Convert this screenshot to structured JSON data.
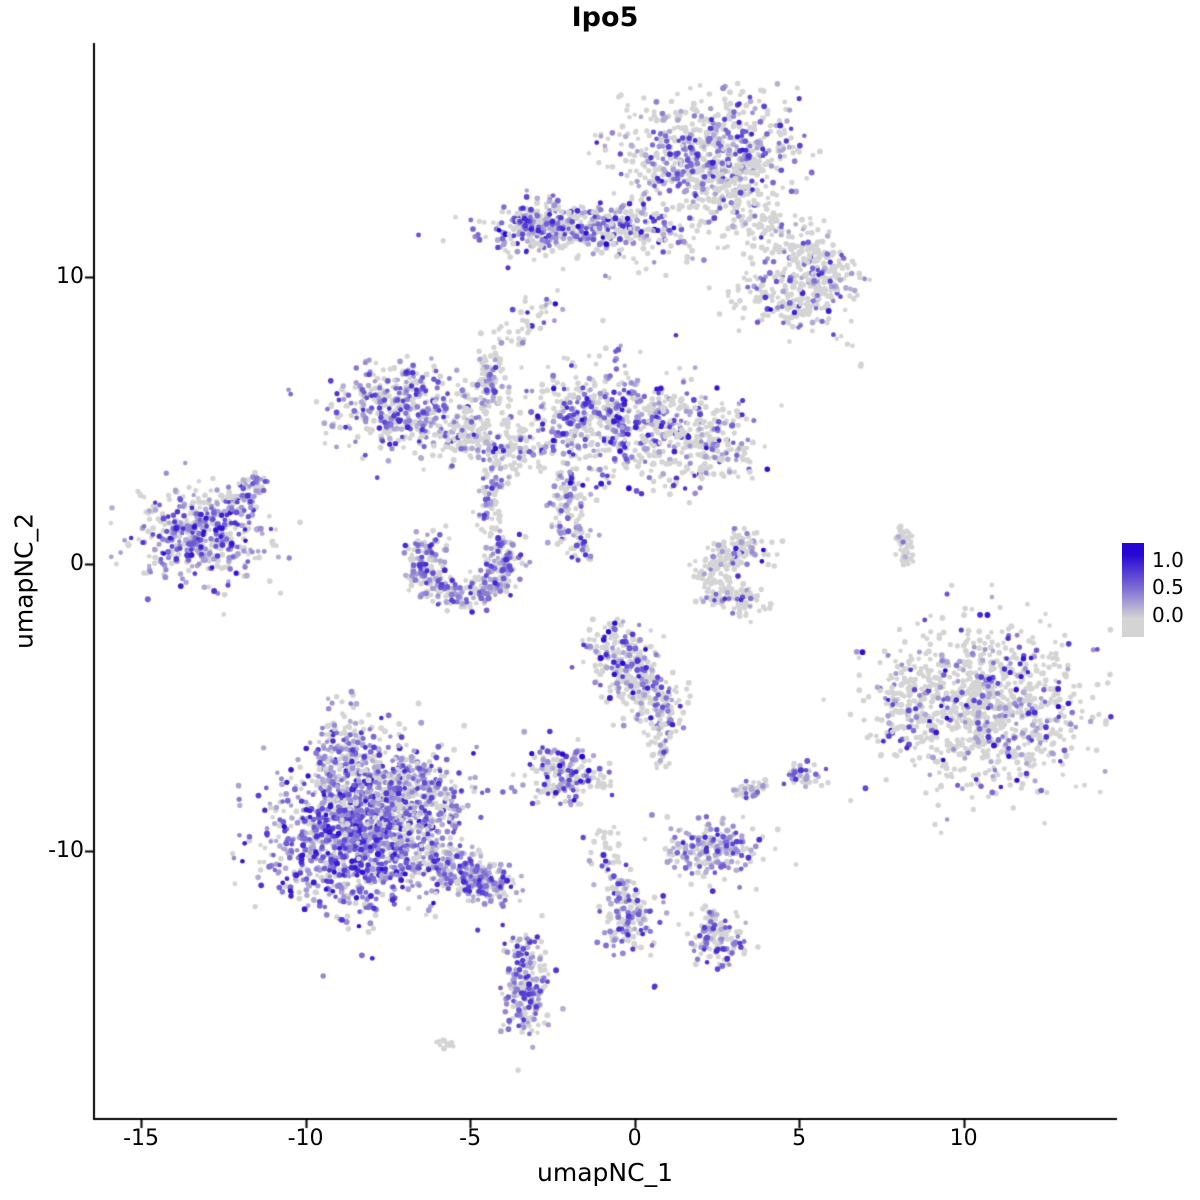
{
  "chart_data": {
    "type": "scatter",
    "title": "Ipo5",
    "xlabel": "umapNC_1",
    "ylabel": "umapNC_2",
    "x_ticks": [
      "-15",
      "-10",
      "-5",
      "0",
      "5",
      "10"
    ],
    "x_tick_values": [
      -15,
      -10,
      -5,
      0,
      5,
      10
    ],
    "y_ticks": [
      "10",
      "0",
      "-10"
    ],
    "y_tick_values": [
      10,
      0,
      -10
    ],
    "xlim": [
      -16.4,
      14.6
    ],
    "ylim": [
      -19.3,
      18.1
    ],
    "grid": false,
    "legend": {
      "position": "right",
      "labels": [
        "1.0",
        "0.5",
        "0.0"
      ],
      "values": [
        1.0,
        0.5,
        0.0
      ]
    },
    "colors": {
      "low": "#d4d4d4",
      "high": "#2606d4",
      "axis": "#000000"
    },
    "point_radius": 2.6,
    "seed": 42,
    "clusters": [
      {
        "type": "g",
        "x": 2.2,
        "y": 14.4,
        "sx": 1.4,
        "sy": 1.0,
        "n": 650,
        "expr": 0.38,
        "hi": 0.9
      },
      {
        "type": "g",
        "x": 3.0,
        "y": 12.9,
        "sx": 0.6,
        "sy": 0.7,
        "n": 120,
        "expr": 0.2
      },
      {
        "type": "s",
        "x1": 3.6,
        "y1": 12.0,
        "x2": 5.8,
        "y2": 10.4,
        "sd": 0.45,
        "n": 160,
        "expr": 0.18
      },
      {
        "type": "g",
        "x": 4.8,
        "y": 9.3,
        "sx": 0.85,
        "sy": 0.6,
        "n": 220,
        "expr": 0.22,
        "hi": 1.0
      },
      {
        "type": "g",
        "x": 5.9,
        "y": 10.1,
        "sx": 0.5,
        "sy": 0.4,
        "n": 90,
        "expr": 0.25
      },
      {
        "type": "g",
        "x": -1.9,
        "y": 11.7,
        "sx": 1.5,
        "sy": 0.45,
        "n": 360,
        "expr": 0.5,
        "hi": 1.0
      },
      {
        "type": "g",
        "x": -2.9,
        "y": 11.8,
        "sx": 0.45,
        "sy": 0.4,
        "n": 120,
        "expr": 0.6
      },
      {
        "type": "g",
        "x": 0.4,
        "y": 11.3,
        "sx": 1.1,
        "sy": 0.7,
        "n": 90,
        "expr": 0.15
      },
      {
        "type": "g",
        "x": -2.6,
        "y": 8.8,
        "sx": 0.3,
        "sy": 0.3,
        "n": 16,
        "expr": 0.4,
        "hi": 1.0
      },
      {
        "type": "g",
        "x": -7.1,
        "y": 5.5,
        "sx": 1.0,
        "sy": 0.75,
        "n": 420,
        "expr": 0.5
      },
      {
        "type": "s",
        "x1": -5.6,
        "y1": 4.6,
        "x2": -3.2,
        "y2": 3.9,
        "sd": 0.4,
        "n": 200,
        "expr": 0.18
      },
      {
        "type": "s",
        "x1": -4.5,
        "y1": 5.6,
        "x2": -4.3,
        "y2": 7.3,
        "sd": 0.22,
        "n": 80,
        "expr": 0.5
      },
      {
        "type": "g",
        "x": -0.7,
        "y": 5.0,
        "sx": 1.6,
        "sy": 1.0,
        "n": 620,
        "expr": 0.45,
        "hi": 0.95
      },
      {
        "type": "g",
        "x": 1.9,
        "y": 4.2,
        "sx": 0.9,
        "sy": 0.7,
        "n": 220,
        "expr": 0.3,
        "hi": 1.0
      },
      {
        "type": "s",
        "x1": -2.1,
        "y1": 3.1,
        "x2": -2.0,
        "y2": 1.0,
        "sd": 0.28,
        "n": 90,
        "expr": 0.45,
        "hi": 1.0
      },
      {
        "type": "g",
        "x": -13.2,
        "y": 1.1,
        "sx": 0.95,
        "sy": 0.85,
        "n": 480,
        "expr": 0.55,
        "hi": 0.95
      },
      {
        "type": "s",
        "x1": -12.2,
        "y1": 2.2,
        "x2": -11.3,
        "y2": 2.9,
        "sd": 0.2,
        "n": 60,
        "expr": 0.5
      },
      {
        "type": "a",
        "cx": -5.2,
        "cy": 0.1,
        "r": 1.25,
        "a1": 140,
        "a2": 400,
        "sd": 0.3,
        "n": 380,
        "expr": 0.5
      },
      {
        "type": "s",
        "x1": -4.5,
        "y1": 1.3,
        "x2": -4.1,
        "y2": 3.6,
        "sd": 0.2,
        "n": 70,
        "expr": 0.4
      },
      {
        "type": "a",
        "cx": 3.3,
        "cy": -0.4,
        "r": 0.95,
        "a1": 60,
        "a2": 300,
        "sd": 0.28,
        "n": 250,
        "expr": 0.12,
        "hi": 1.0
      },
      {
        "type": "g",
        "x": 3.2,
        "y": 0.5,
        "sx": 0.25,
        "sy": 0.3,
        "n": 25,
        "expr": 0.5,
        "hi": 1.0
      },
      {
        "type": "s",
        "x1": 8.1,
        "y1": 1.2,
        "x2": 8.3,
        "y2": 0.0,
        "sd": 0.15,
        "n": 45,
        "expr": 0.05
      },
      {
        "type": "g",
        "x": 10.7,
        "y": -5.0,
        "sx": 1.5,
        "sy": 1.4,
        "n": 950,
        "expr": 0.2,
        "hi": 1.0
      },
      {
        "type": "g",
        "x": 8.2,
        "y": -4.6,
        "sx": 0.5,
        "sy": 0.8,
        "n": 110,
        "expr": 0.2,
        "hi": 1.0
      },
      {
        "type": "s",
        "x1": -0.9,
        "y1": -2.5,
        "x2": 0.9,
        "y2": -5.3,
        "sd": 0.5,
        "n": 380,
        "expr": 0.3,
        "hi": 1.0
      },
      {
        "type": "s",
        "x1": 0.8,
        "y1": -5.6,
        "x2": 0.9,
        "y2": -6.9,
        "sd": 0.2,
        "n": 40,
        "expr": 0.2
      },
      {
        "type": "g",
        "x": -2.2,
        "y": -7.3,
        "sx": 0.55,
        "sy": 0.5,
        "n": 170,
        "expr": 0.5,
        "hi": 1.0
      },
      {
        "type": "g",
        "x": -0.9,
        "y": -7.5,
        "sx": 0.2,
        "sy": 0.2,
        "n": 15,
        "expr": 0.3
      },
      {
        "type": "s",
        "x1": 3.2,
        "y1": -7.9,
        "x2": 3.9,
        "y2": -7.7,
        "sd": 0.15,
        "n": 45,
        "expr": 0.3
      },
      {
        "type": "g",
        "x": 5.2,
        "y": -7.3,
        "sx": 0.3,
        "sy": 0.25,
        "n": 40,
        "expr": 0.45
      },
      {
        "type": "g",
        "x": -8.5,
        "y": -9.4,
        "sx": 1.35,
        "sy": 1.3,
        "n": 1250,
        "expr": 0.72,
        "hi": 0.95
      },
      {
        "type": "g",
        "x": -7.0,
        "y": -8.0,
        "sx": 1.0,
        "sy": 0.9,
        "n": 420,
        "expr": 0.6
      },
      {
        "type": "s",
        "x1": -6.3,
        "y1": -10.3,
        "x2": -4.1,
        "y2": -11.3,
        "sd": 0.4,
        "n": 330,
        "expr": 0.55
      },
      {
        "type": "g",
        "x": -8.8,
        "y": -6.3,
        "sx": 0.45,
        "sy": 0.8,
        "n": 130,
        "expr": 0.5
      },
      {
        "type": "g",
        "x": 2.4,
        "y": -9.9,
        "sx": 0.7,
        "sy": 0.5,
        "n": 210,
        "expr": 0.55
      },
      {
        "type": "s",
        "x1": -0.9,
        "y1": -9.5,
        "x2": -0.4,
        "y2": -11.6,
        "sd": 0.25,
        "n": 70,
        "expr": 0.2
      },
      {
        "type": "g",
        "x": -0.2,
        "y": -12.3,
        "sx": 0.4,
        "sy": 0.55,
        "n": 130,
        "expr": 0.55
      },
      {
        "type": "s",
        "x1": 2.2,
        "y1": -12.0,
        "x2": 2.5,
        "y2": -12.7,
        "sd": 0.15,
        "n": 30,
        "expr": 0.2
      },
      {
        "type": "g",
        "x": 2.6,
        "y": -13.1,
        "sx": 0.45,
        "sy": 0.45,
        "n": 100,
        "expr": 0.5
      },
      {
        "type": "s",
        "x1": -3.2,
        "y1": -13.0,
        "x2": -3.3,
        "y2": -13.9,
        "sd": 0.15,
        "n": 25,
        "expr": 0.2
      },
      {
        "type": "g",
        "x": -3.3,
        "y": -14.8,
        "sx": 0.35,
        "sy": 0.85,
        "n": 190,
        "expr": 0.62
      },
      {
        "type": "g",
        "x": -10.5,
        "y": 6.0,
        "sx": 0.06,
        "sy": 0.06,
        "n": 2,
        "expr": 1.0
      },
      {
        "type": "g",
        "x": 6.9,
        "y": 6.9,
        "sx": 0.06,
        "sy": 0.06,
        "n": 2,
        "expr": 0.0
      },
      {
        "type": "g",
        "x": 0.6,
        "y": -14.7,
        "sx": 0.06,
        "sy": 0.06,
        "n": 2,
        "expr": 1.0
      },
      {
        "type": "s",
        "x1": -6.0,
        "y1": -16.6,
        "x2": -5.5,
        "y2": -16.7,
        "sd": 0.08,
        "n": 12,
        "expr": 0.08
      },
      {
        "type": "g",
        "x": -3.5,
        "y": 7.7,
        "sx": 0.12,
        "sy": 0.12,
        "n": 4,
        "expr": 0.2
      },
      {
        "type": "s",
        "x1": -4.2,
        "y1": 7.6,
        "x2": -3.0,
        "y2": 9.0,
        "sd": 0.3,
        "n": 25,
        "expr": 0.15
      },
      {
        "type": "g",
        "x": -1.5,
        "y": 0.6,
        "sx": 0.25,
        "sy": 0.35,
        "n": 30,
        "expr": 0.5
      }
    ]
  }
}
